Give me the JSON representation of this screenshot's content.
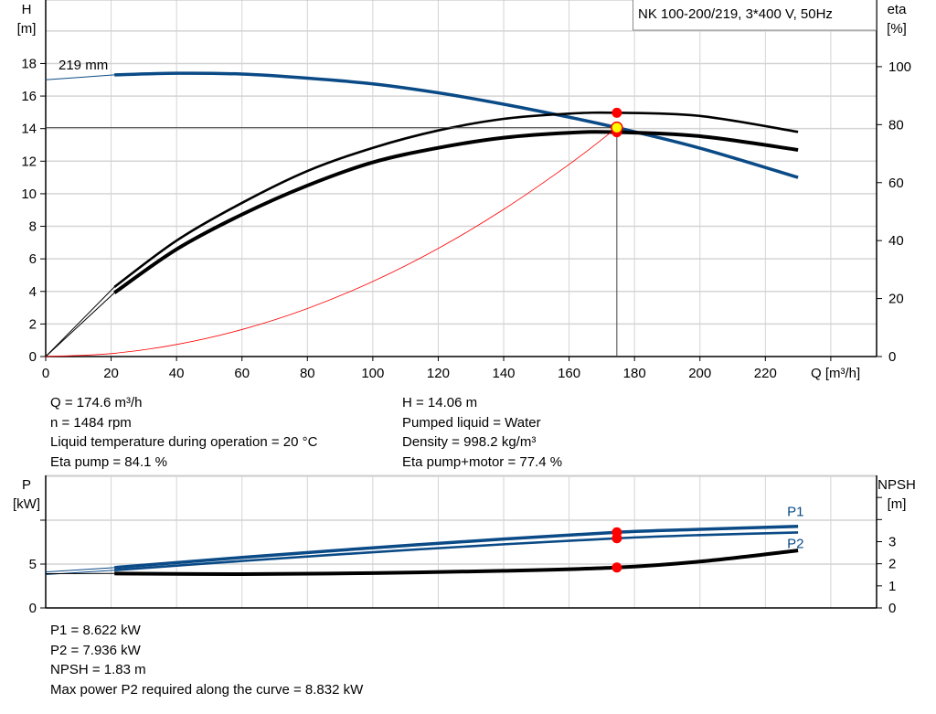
{
  "chart_data": [
    {
      "type": "line",
      "title": "NK 100-200/219, 3*400 V, 50Hz",
      "xlabel": "Q [m³/h]",
      "ylabel_left": [
        "H",
        "[m]"
      ],
      "ylabel_right": [
        "eta",
        "[%]"
      ],
      "xlim": [
        0,
        254
      ],
      "ylim": [
        0,
        21.9
      ],
      "y2lim": [
        0,
        123
      ],
      "grid": true,
      "x_ticks": [
        0,
        20,
        40,
        60,
        80,
        100,
        120,
        140,
        160,
        180,
        200,
        220
      ],
      "y_ticks": [
        0,
        2,
        4,
        6,
        8,
        10,
        12,
        14,
        16,
        18
      ],
      "y2_ticks": [
        0,
        20,
        40,
        60,
        80,
        100
      ],
      "annotation": "219 mm",
      "series": [
        {
          "key": "H",
          "axis": "left",
          "color": "#0a4a86",
          "x": [
            0,
            21,
            40,
            60,
            80,
            100,
            120,
            140,
            160,
            174.6,
            200,
            230
          ],
          "y": [
            17.0,
            17.3,
            17.4,
            17.35,
            17.1,
            16.75,
            16.2,
            15.5,
            14.7,
            14.06,
            12.8,
            11.0
          ]
        },
        {
          "key": "eta_pump",
          "axis": "right",
          "color": "#000000",
          "x": [
            0,
            21,
            40,
            60,
            80,
            100,
            120,
            140,
            160,
            174.6,
            200,
            230
          ],
          "y": [
            0,
            24,
            40,
            53,
            64,
            72,
            78,
            82,
            83.8,
            84.1,
            83,
            77.5
          ]
        },
        {
          "key": "eta_pump_motor",
          "axis": "right",
          "color": "#000000",
          "x": [
            0,
            21,
            40,
            60,
            80,
            100,
            120,
            140,
            160,
            174.6,
            200,
            230
          ],
          "y": [
            0,
            22,
            37,
            49,
            59,
            67,
            72,
            75.5,
            77.2,
            77.4,
            76,
            71.3
          ]
        },
        {
          "key": "system_curve",
          "axis": "left",
          "color": "#ff0000",
          "x": [
            0,
            20,
            40,
            60,
            80,
            100,
            120,
            140,
            160,
            174.6
          ],
          "y": [
            0,
            0.18,
            0.74,
            1.66,
            2.95,
            4.61,
            6.64,
            9.04,
            11.8,
            14.06
          ]
        }
      ],
      "duty_point": {
        "Q": 174.6,
        "H": 14.06,
        "eta_pump": 84.1,
        "eta_pump_motor": 77.4
      }
    },
    {
      "type": "line",
      "ylabel_left": [
        "P",
        "[kW]"
      ],
      "ylabel_right": [
        "NPSH",
        "[m]"
      ],
      "xlim": [
        0,
        254
      ],
      "ylim": [
        0,
        15.1
      ],
      "y2lim": [
        0,
        6
      ],
      "grid": true,
      "y_ticks": [
        0,
        5,
        10
      ],
      "y_tick_labels": [
        "0",
        "5",
        ""
      ],
      "y2_ticks": [
        0,
        1,
        2,
        3,
        4,
        5
      ],
      "y2_tick_labels": [
        "0",
        "1",
        "2",
        "3",
        "",
        ""
      ],
      "series": [
        {
          "name": "P1",
          "axis": "left",
          "color": "#0a4a86",
          "x": [
            0,
            21,
            60,
            100,
            140,
            174.6,
            200,
            230
          ],
          "y": [
            4.1,
            4.6,
            5.75,
            6.85,
            7.85,
            8.622,
            8.95,
            9.3
          ]
        },
        {
          "name": "P2",
          "axis": "left",
          "color": "#0a4a86",
          "x": [
            0,
            21,
            60,
            100,
            140,
            174.6,
            200,
            230
          ],
          "y": [
            3.8,
            4.3,
            5.35,
            6.35,
            7.25,
            7.936,
            8.3,
            8.6
          ]
        },
        {
          "key": "NPSH",
          "axis": "right",
          "color": "#000000",
          "x": [
            0,
            21,
            60,
            100,
            140,
            174.6,
            200,
            230
          ],
          "y": [
            1.55,
            1.56,
            1.53,
            1.58,
            1.68,
            1.83,
            2.1,
            2.6
          ]
        }
      ],
      "duty_point": {
        "Q": 174.6,
        "P1": 8.622,
        "P2": 7.936,
        "NPSH": 1.83
      }
    }
  ],
  "info1": {
    "left": [
      "Q = 174.6 m³/h",
      "n = 1484 rpm",
      "Liquid temperature during operation = 20 °C",
      "Eta pump = 84.1 %"
    ],
    "right": [
      "H = 14.06 m",
      "Pumped liquid = Water",
      "Density = 998.2 kg/m³",
      "Eta pump+motor = 77.4 %"
    ]
  },
  "info2": [
    "P1 = 8.622 kW",
    "P2 = 7.936 kW",
    "NPSH = 1.83 m",
    "Max power P2 required along the curve = 8.832 kW"
  ]
}
